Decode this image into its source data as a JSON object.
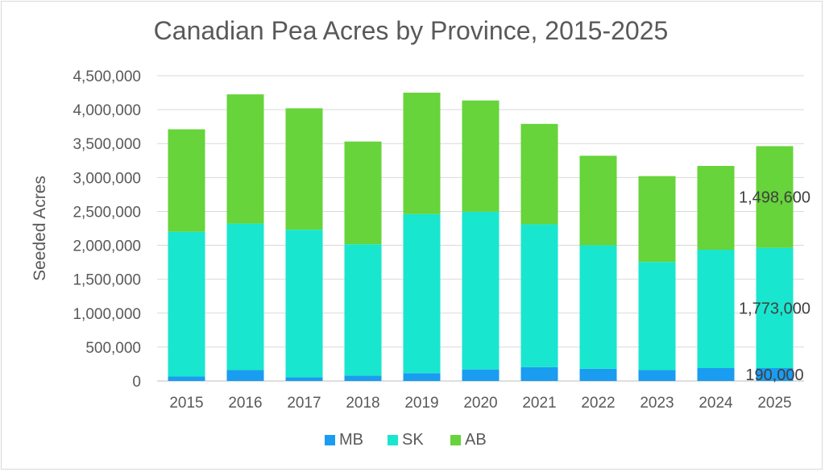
{
  "chart_data": {
    "type": "bar",
    "stacked": true,
    "title": "Canadian Pea Acres by Province, 2015-2025",
    "xlabel": "",
    "ylabel": "Seeded Acres",
    "ylim": [
      0,
      4500000
    ],
    "yticks": [
      "0",
      "500,000",
      "1,000,000",
      "1,500,000",
      "2,000,000",
      "2,500,000",
      "3,000,000",
      "3,500,000",
      "4,000,000",
      "4,500,000"
    ],
    "categories": [
      "2015",
      "2016",
      "2017",
      "2018",
      "2019",
      "2020",
      "2021",
      "2022",
      "2023",
      "2024",
      "2025"
    ],
    "grid": true,
    "legend_position": "bottom",
    "series": [
      {
        "name": "MB",
        "color": "#1a9cf0",
        "values": [
          65000,
          160000,
          55000,
          80000,
          115000,
          170000,
          205000,
          180000,
          160000,
          190000,
          190000
        ]
      },
      {
        "name": "SK",
        "color": "#19e6ce",
        "values": [
          2135000,
          2160000,
          2175000,
          1935000,
          2345000,
          2325000,
          2105000,
          1820000,
          1595000,
          1745000,
          1773000
        ]
      },
      {
        "name": "AB",
        "color": "#66d43a",
        "values": [
          1510000,
          1905000,
          1790000,
          1515000,
          1790000,
          1640000,
          1480000,
          1320000,
          1265000,
          1235000,
          1498600
        ]
      }
    ],
    "data_labels": [
      {
        "series": "MB",
        "category": "2025",
        "text": "190,000"
      },
      {
        "series": "SK",
        "category": "2025",
        "text": "1,773,000"
      },
      {
        "series": "AB",
        "category": "2025",
        "text": "1,498,600"
      }
    ]
  }
}
